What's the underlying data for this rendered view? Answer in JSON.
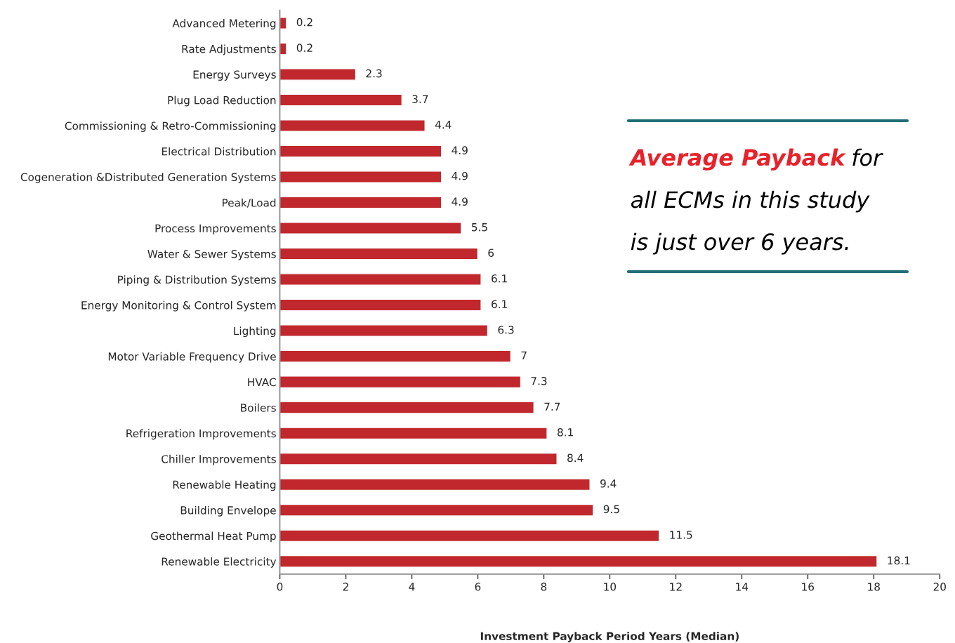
{
  "chart_data": {
    "type": "bar",
    "orientation": "horizontal",
    "xlabel": "Investment Payback Period Years (Median)",
    "categories": [
      "Advanced Metering",
      "Rate Adjustments",
      "Energy Surveys",
      "Plug Load Reduction",
      "Commissioning & Retro-Commissioning",
      "Electrical Distribution",
      "Cogeneration &Distributed Generation Systems",
      "Peak/Load",
      "Process Improvements",
      "Water & Sewer Systems",
      "Piping & Distribution Systems",
      "Energy Monitoring & Control System",
      "Lighting",
      "Motor Variable Frequency Drive",
      "HVAC",
      "Boilers",
      "Refrigeration Improvements",
      "Chiller Improvements",
      "Renewable Heating",
      "Building Envelope",
      "Geothermal Heat Pump",
      "Renewable Electricity"
    ],
    "values": [
      0.2,
      0.2,
      2.3,
      3.7,
      4.4,
      4.9,
      4.9,
      4.9,
      5.5,
      6,
      6.1,
      6.1,
      6.3,
      7,
      7.3,
      7.7,
      8.1,
      8.4,
      9.4,
      9.5,
      11.5,
      18.1
    ],
    "color": "#c0282d",
    "data_labels": true,
    "grid": false,
    "legend": false,
    "xlim": [
      0,
      20
    ],
    "xticks": [
      0,
      2,
      4,
      6,
      8,
      10,
      12,
      14,
      16,
      18,
      20
    ],
    "annotations": [
      "Average Payback",
      "for\nall ECMs in this study\nis just over 6 years."
    ]
  }
}
